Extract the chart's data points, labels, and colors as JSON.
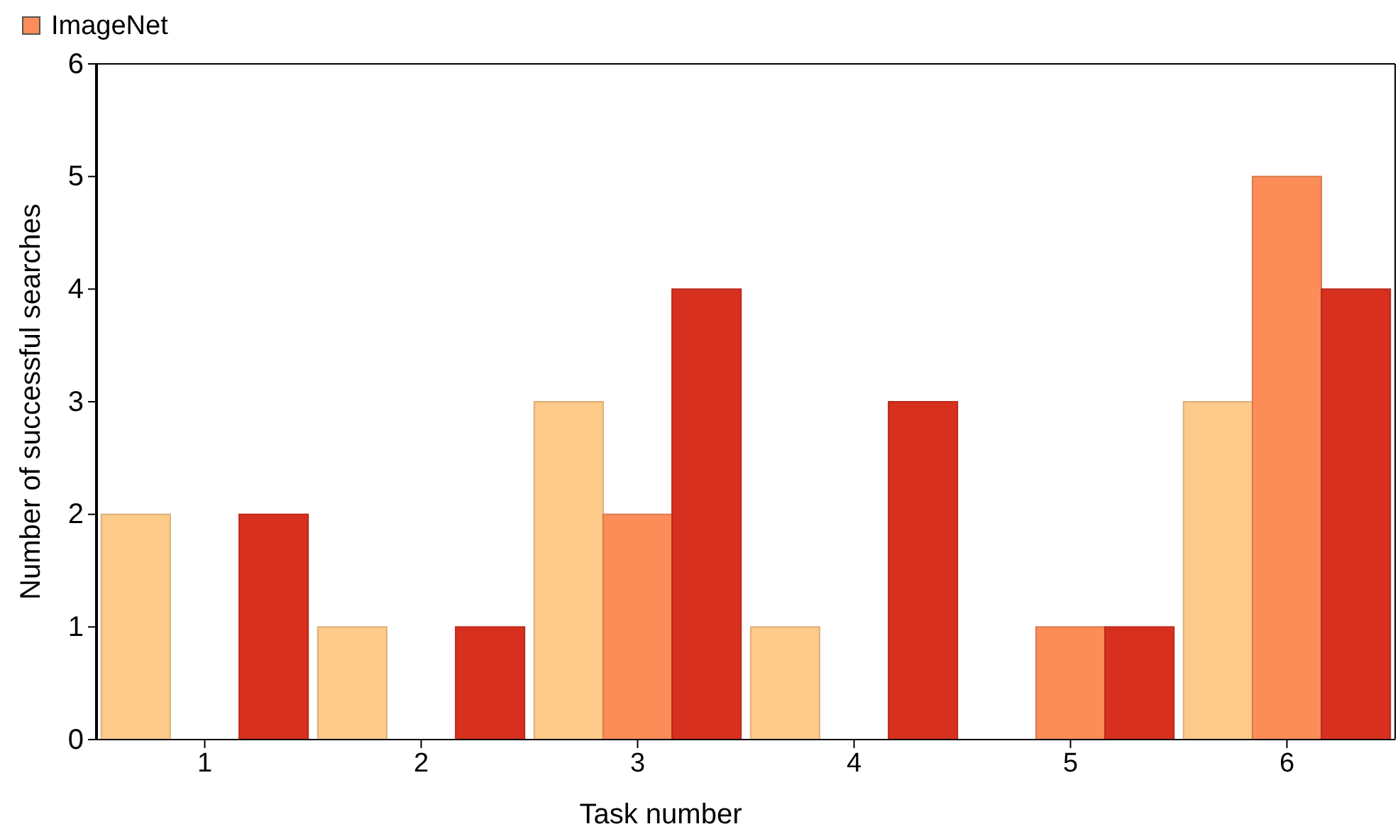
{
  "chart_data": {
    "type": "bar",
    "xlabel": "Task number",
    "ylabel": "Number of successful searches",
    "categories": [
      "1",
      "2",
      "3",
      "4",
      "5",
      "6"
    ],
    "series": [
      {
        "color": "#fdca8a",
        "values": [
          2,
          1,
          3,
          1,
          0,
          3
        ]
      },
      {
        "name": "ImageNet",
        "color": "#fc8d59",
        "values": [
          0,
          0,
          2,
          0,
          1,
          5
        ]
      },
      {
        "color": "#d7301f",
        "values": [
          2,
          1,
          4,
          3,
          1,
          4
        ]
      }
    ],
    "ylim": [
      0,
      6
    ],
    "yticks": [
      0,
      1,
      2,
      3,
      4,
      5,
      6
    ],
    "grid": false,
    "legend": "top left"
  }
}
